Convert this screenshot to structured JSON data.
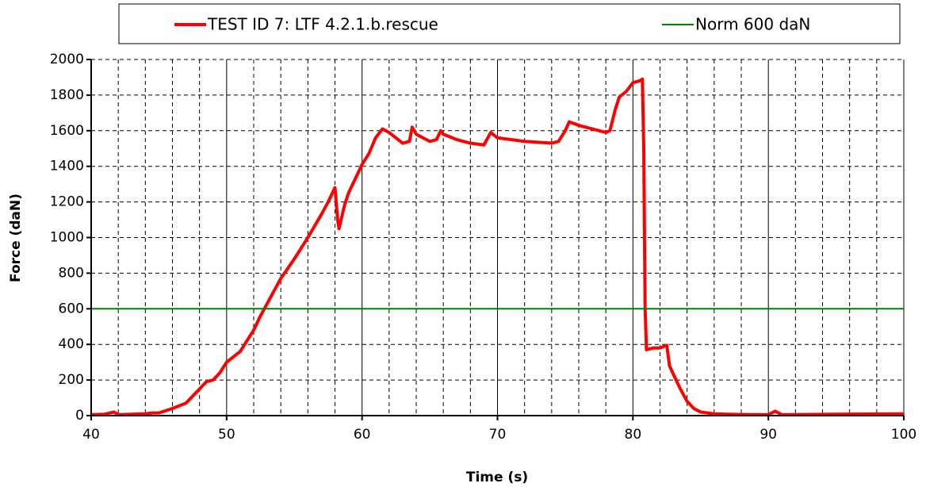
{
  "chart_data": {
    "type": "line",
    "xlabel": "Time (s)",
    "ylabel": "Force (daN)",
    "xlim": [
      40,
      100
    ],
    "xticks": [
      40,
      50,
      60,
      70,
      80,
      90,
      100
    ],
    "xgrid_minor": [
      42,
      44,
      46,
      48,
      52,
      54,
      56,
      58,
      62,
      64,
      66,
      68,
      72,
      74,
      76,
      78,
      82,
      84,
      86,
      88,
      92,
      94,
      96,
      98
    ],
    "ylim": [
      0,
      2000
    ],
    "yticks": [
      0,
      200,
      400,
      600,
      800,
      1000,
      1200,
      1400,
      1600,
      1800,
      2000
    ],
    "grid": true,
    "legend": "top",
    "series": [
      {
        "name": "TEST ID 7: LTF 4.2.1.b.rescue",
        "color": "#ff0000",
        "width": 4,
        "x": [
          40,
          41,
          41.7,
          42,
          43,
          44,
          44.5,
          45,
          46,
          47,
          47.5,
          48,
          48.5,
          49,
          49.5,
          50,
          50.5,
          51,
          51.5,
          52,
          52.5,
          53,
          53.5,
          54,
          55,
          56,
          57,
          57.5,
          58,
          58.2,
          58.3,
          58.7,
          59,
          59.5,
          60,
          60.5,
          61,
          61.5,
          62,
          62.5,
          63,
          63.5,
          63.7,
          64,
          64.5,
          65,
          65.5,
          65.8,
          66,
          67,
          67.5,
          68,
          68.5,
          69,
          69.5,
          70,
          71,
          72,
          73,
          74,
          74.5,
          75,
          75.3,
          76,
          77,
          78,
          78.3,
          78.7,
          79,
          79.5,
          80,
          80.5,
          80.7,
          80.8,
          80.9,
          81,
          81.5,
          82,
          82.5,
          82.7,
          83,
          83.5,
          84,
          84.5,
          85,
          86,
          87,
          88,
          90,
          90.5,
          91,
          95,
          100
        ],
        "values": [
          5,
          8,
          20,
          5,
          8,
          10,
          15,
          15,
          40,
          70,
          110,
          150,
          190,
          200,
          240,
          300,
          330,
          360,
          420,
          480,
          560,
          630,
          700,
          770,
          880,
          1000,
          1130,
          1200,
          1280,
          1100,
          1050,
          1180,
          1250,
          1330,
          1410,
          1470,
          1560,
          1610,
          1590,
          1560,
          1530,
          1540,
          1620,
          1580,
          1560,
          1540,
          1550,
          1600,
          1580,
          1550,
          1540,
          1530,
          1525,
          1520,
          1590,
          1560,
          1550,
          1540,
          1535,
          1530,
          1540,
          1600,
          1650,
          1630,
          1610,
          1590,
          1600,
          1720,
          1790,
          1820,
          1870,
          1880,
          1890,
          1500,
          600,
          370,
          380,
          380,
          395,
          280,
          230,
          150,
          80,
          40,
          20,
          10,
          8,
          6,
          5,
          25,
          5,
          8,
          10
        ]
      },
      {
        "name": "Norm 600 daN",
        "color": "#008000",
        "width": 2,
        "x": [
          40,
          100
        ],
        "values": [
          600,
          600
        ]
      }
    ]
  }
}
